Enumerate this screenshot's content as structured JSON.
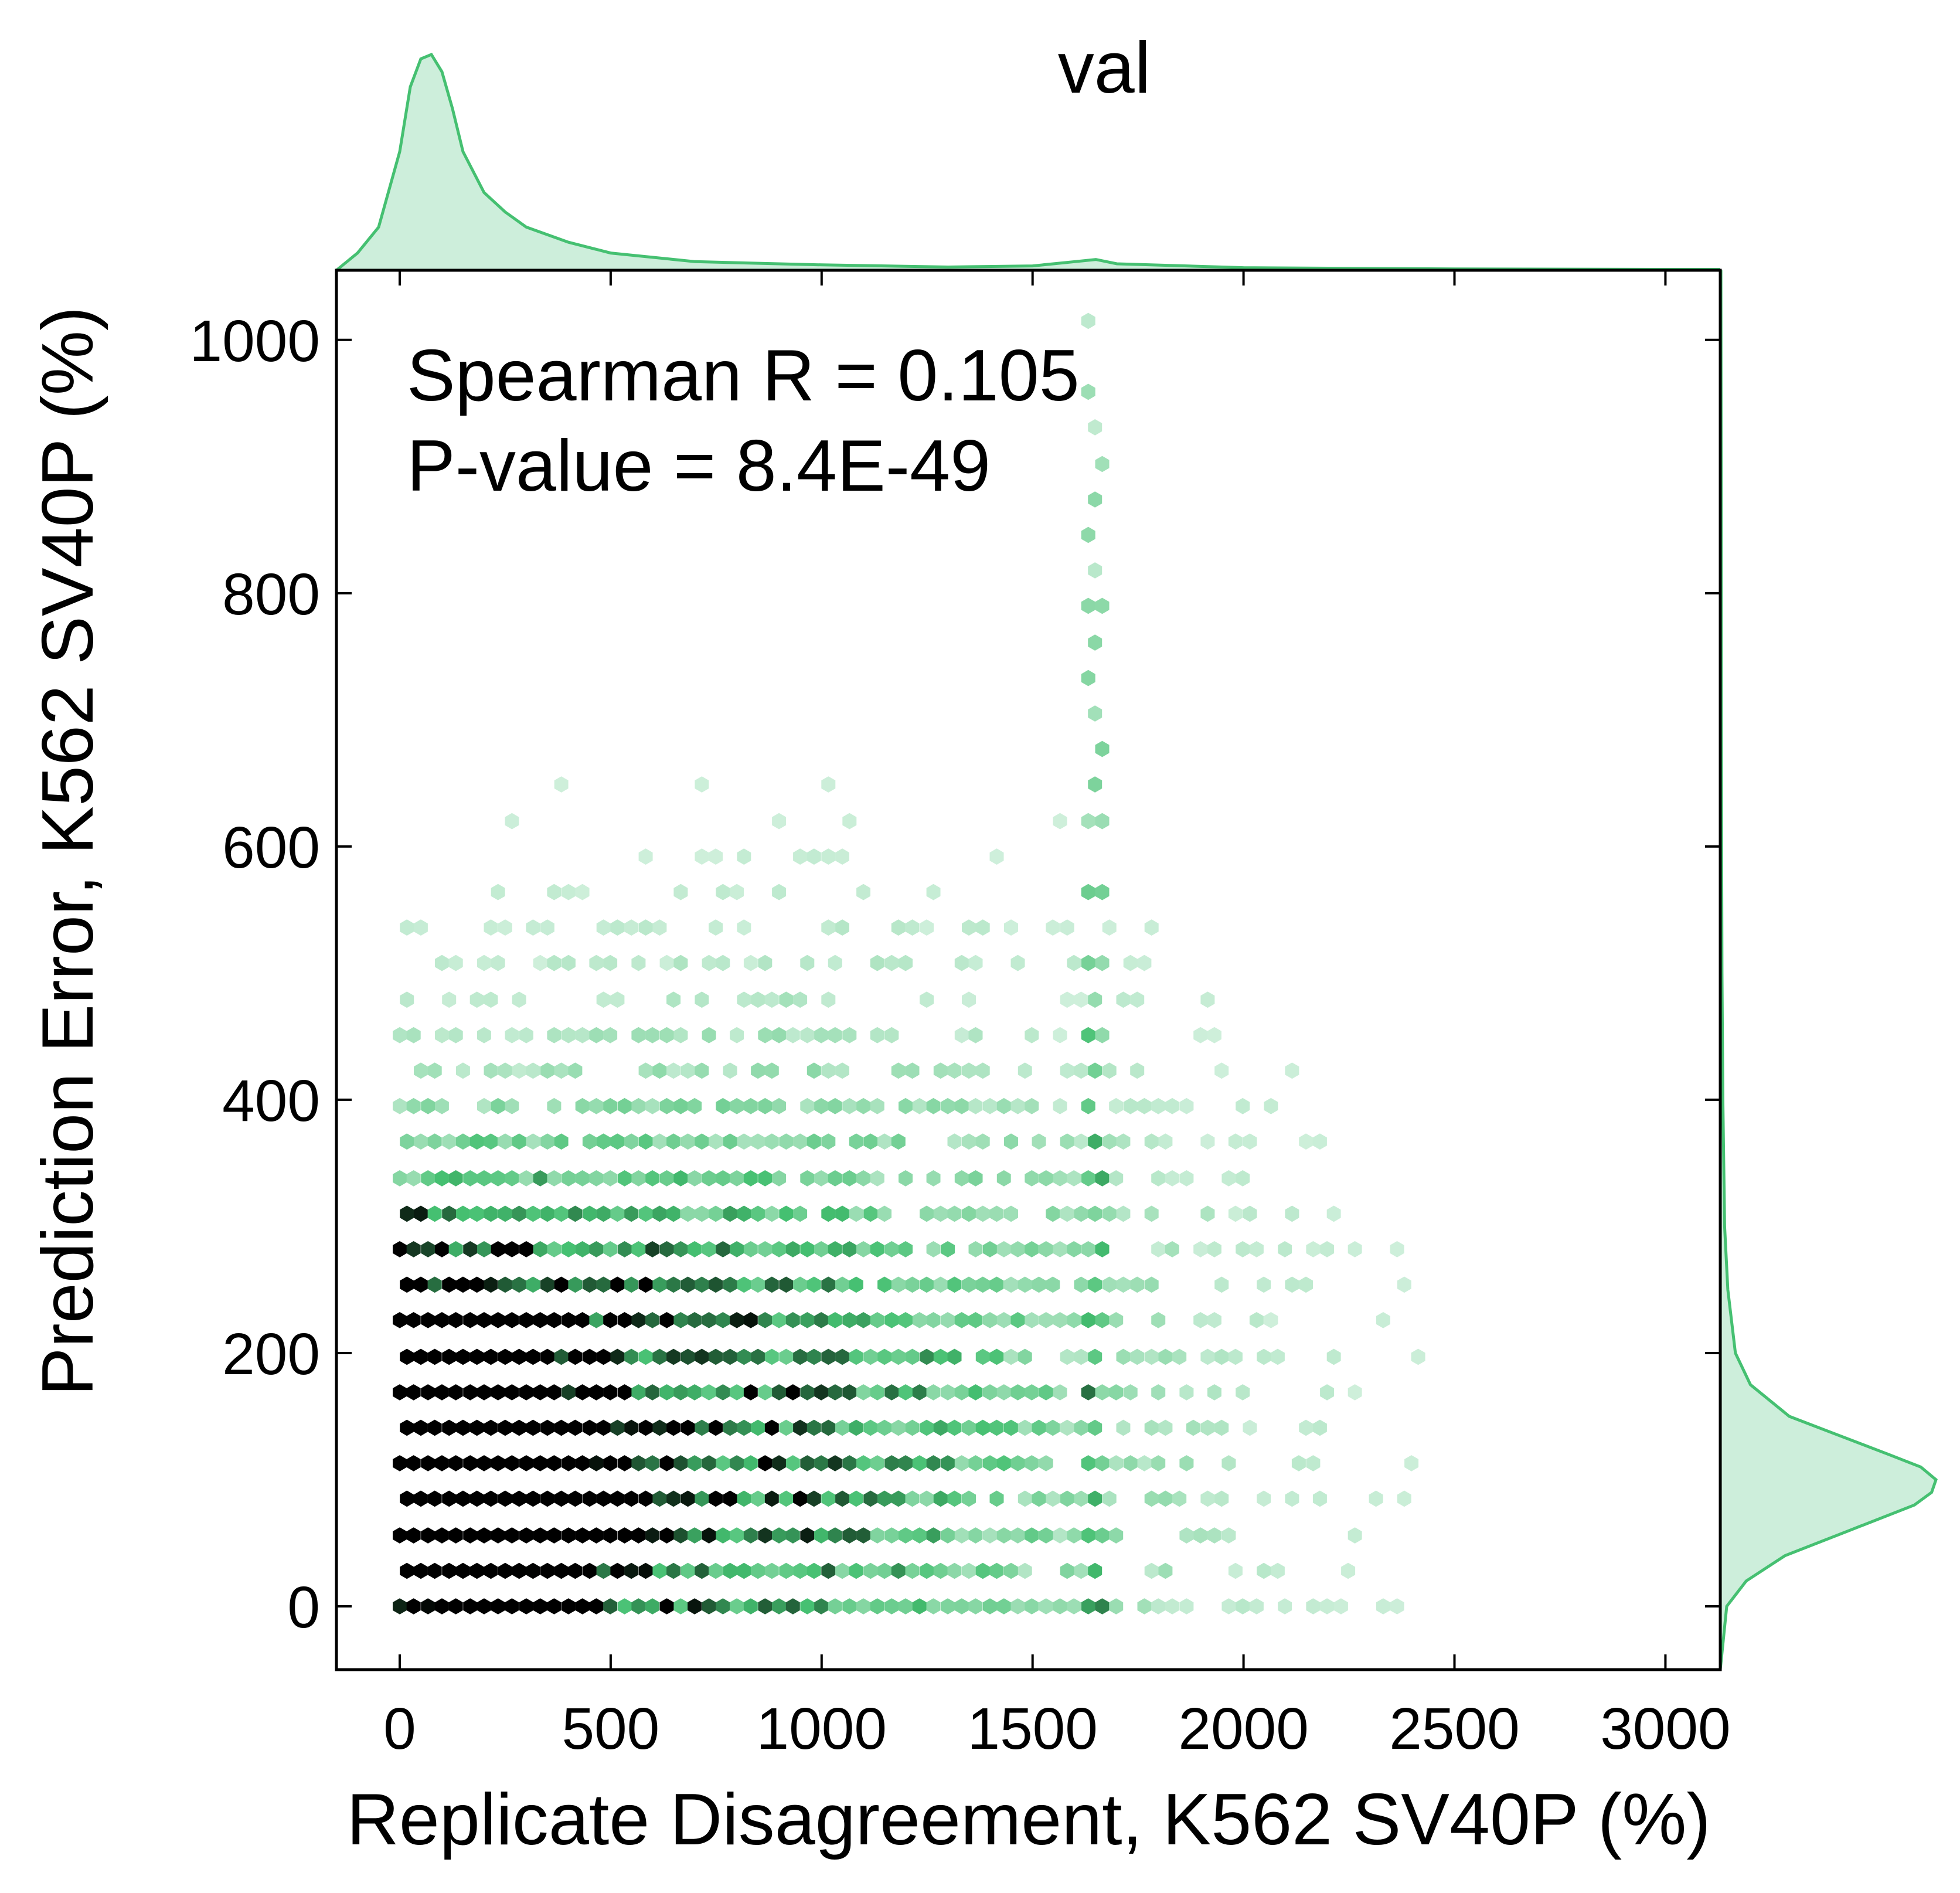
{
  "chart_data": {
    "type": "hexbin",
    "title": "val",
    "xlabel": "Replicate Disagreement, K562 SV40P (%)",
    "ylabel": "Prediction Error, K562 SV40P (%)",
    "xlim": [
      -150,
      3130
    ],
    "ylim": [
      -50,
      1055
    ],
    "xticks": [
      0,
      500,
      1000,
      1500,
      2000,
      2500,
      3000
    ],
    "yticks": [
      0,
      200,
      400,
      600,
      800,
      1000
    ],
    "annotations": [
      "Spearman R = 0.105",
      "P-value = 8.4E-49"
    ],
    "colors": {
      "hex_max": "#000000",
      "hex_mid": "#45c071",
      "hex_min": "#e6f7ec",
      "marginal": "#45c071",
      "marginal_fill": "#cdeedb"
    },
    "hex_grid": {
      "x_step": 33.3,
      "y_step": 28.2
    },
    "hexes": [],
    "marginal_x": {
      "x": [
        -150,
        -100,
        -50,
        0,
        25,
        50,
        75,
        100,
        125,
        150,
        200,
        250,
        300,
        400,
        500,
        700,
        1000,
        1300,
        1500,
        1600,
        1650,
        1700,
        2000,
        2500,
        3000,
        3130
      ],
      "density": [
        0,
        0.08,
        0.2,
        0.55,
        0.85,
        0.98,
        1.0,
        0.92,
        0.75,
        0.55,
        0.36,
        0.27,
        0.2,
        0.13,
        0.08,
        0.04,
        0.025,
        0.015,
        0.02,
        0.04,
        0.05,
        0.03,
        0.012,
        0.006,
        0.004,
        0.004
      ]
    },
    "marginal_y": {
      "y": [
        -50,
        0,
        20,
        40,
        60,
        80,
        90,
        100,
        110,
        120,
        135,
        150,
        175,
        200,
        250,
        300,
        400,
        500,
        700,
        900,
        1055
      ],
      "density": [
        0.0,
        0.03,
        0.12,
        0.3,
        0.6,
        0.9,
        0.98,
        1.0,
        0.93,
        0.78,
        0.55,
        0.32,
        0.14,
        0.07,
        0.035,
        0.02,
        0.012,
        0.008,
        0.005,
        0.004,
        0.003
      ]
    }
  }
}
